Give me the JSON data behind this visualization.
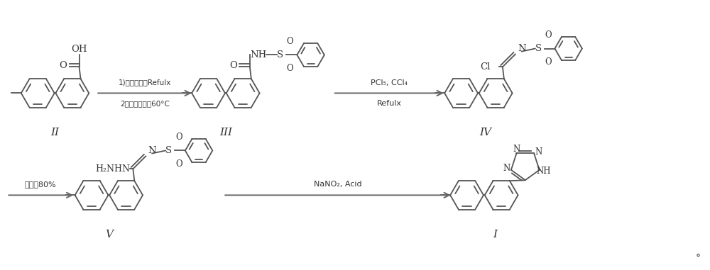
{
  "background_color": "#ffffff",
  "line_color": "#555555",
  "text_color": "#333333",
  "arrow_color": "#666666",
  "figsize": [
    10.0,
    3.81
  ],
  "dpi": 100,
  "label_II": "II",
  "label_III": "III",
  "label_IV": "IV",
  "label_V": "V",
  "label_I": "I",
  "reagent_1a": "1)氯化亚砧，Refulx",
  "reagent_1b": "2）苯磺酰胺，60°C",
  "reagent_2a": "PCl₅, CCl₄",
  "reagent_2b": "Refulx",
  "reagent_3": "水合肼80%",
  "reagent_4": "NaNO₂, Acid",
  "degree_symbol": "°"
}
